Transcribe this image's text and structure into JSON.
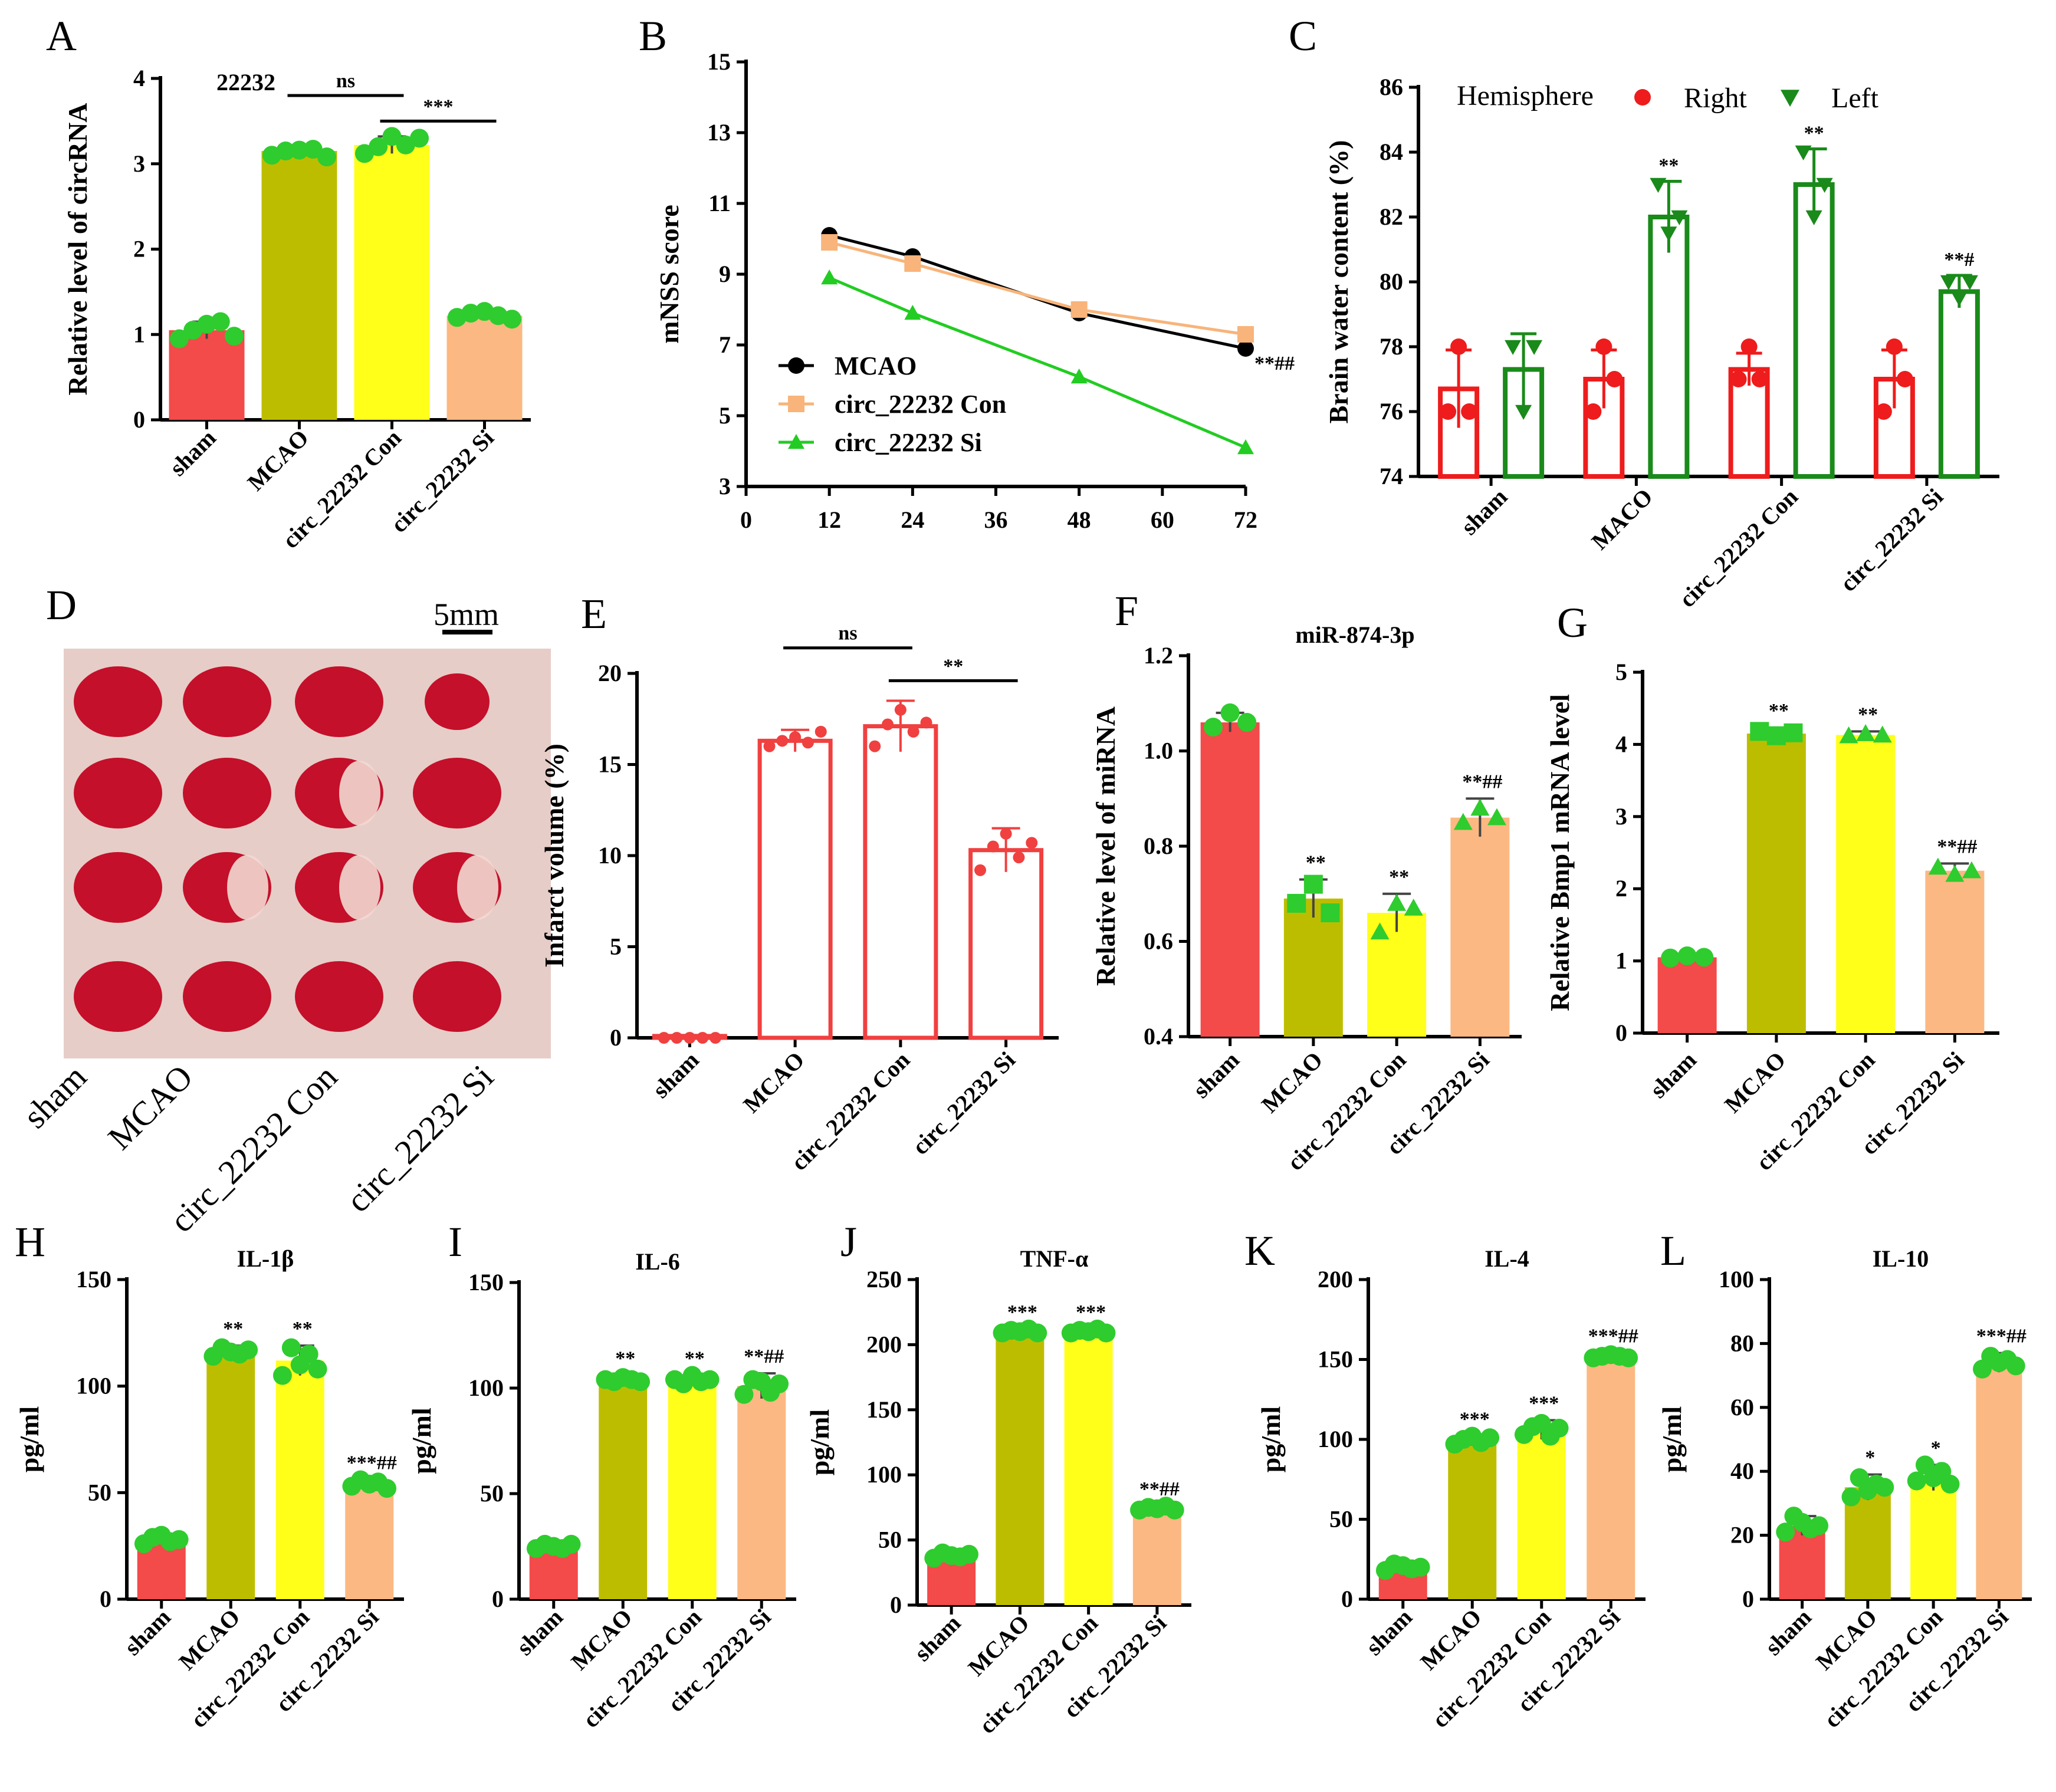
{
  "colors": {
    "sham": "#f34a4a",
    "MCAO": "#bdbd00",
    "con": "#ffff1a",
    "si": "#fcb882",
    "dot": "#2ecc2e",
    "right": "#ee1c1c",
    "left": "#1a8a1a",
    "infarct": "#f04040",
    "line_mcao": "#000000",
    "line_con": "#f8b47a",
    "line_si": "#22cc22"
  },
  "categories": [
    "sham",
    "MCAO",
    "circ_22232 Con",
    "circ_22232 Si"
  ],
  "panelD": {
    "letter": "D",
    "scale_label": "5mm",
    "categories": [
      "sham",
      "MCAO",
      "circ_22232 Con",
      "circ_22232 Si"
    ],
    "image_alt": "TTC-stained brain slices"
  },
  "chart_data": [
    {
      "id": "A",
      "type": "bar",
      "letter": "A",
      "title": "22232",
      "ylabel": "Relative level of circRNA",
      "categories": [
        "sham",
        "MCAO",
        "circ_22232 Con",
        "circ_22232 Si"
      ],
      "values": [
        1.05,
        3.15,
        3.22,
        1.22
      ],
      "errors": [
        0.1,
        0.04,
        0.1,
        0.04
      ],
      "points": [
        [
          0.95,
          1.05,
          1.12,
          1.15,
          0.98
        ],
        [
          3.1,
          3.15,
          3.16,
          3.17,
          3.08
        ],
        [
          3.12,
          3.2,
          3.32,
          3.22,
          3.3
        ],
        [
          1.2,
          1.25,
          1.27,
          1.22,
          1.18
        ]
      ],
      "ylim": [
        0,
        4
      ],
      "yticks": [
        0,
        1,
        2,
        3,
        4
      ],
      "brackets": [
        {
          "from": 1,
          "to": 2,
          "label": "ns",
          "y": 3.8
        },
        {
          "from": 2,
          "to": 3,
          "label": "***",
          "y": 3.5
        }
      ],
      "sig": [
        "",
        "",
        "",
        ""
      ]
    },
    {
      "id": "B",
      "type": "line",
      "letter": "B",
      "ylabel": "mNSS score",
      "x": [
        12,
        24,
        48,
        72
      ],
      "xticks": [
        0,
        12,
        24,
        36,
        48,
        60,
        72
      ],
      "yticks": [
        3,
        5,
        7,
        9,
        11,
        13,
        15
      ],
      "xlim": [
        0,
        72
      ],
      "ylim": [
        3,
        15
      ],
      "series": [
        {
          "name": "MCAO",
          "values": [
            10.1,
            9.5,
            7.9,
            6.9
          ],
          "marker": "circle"
        },
        {
          "name": "circ_22232 Con",
          "values": [
            9.9,
            9.3,
            8.0,
            7.3
          ],
          "marker": "square"
        },
        {
          "name": "circ_22232 Si",
          "values": [
            8.9,
            7.9,
            6.1,
            4.1
          ],
          "marker": "triangle"
        }
      ],
      "annotation": "**##"
    },
    {
      "id": "C",
      "type": "bar",
      "letter": "C",
      "ylabel": "Brain water content (%)",
      "legend_title": "Hemisphere",
      "legend": [
        "Right",
        "Left"
      ],
      "categories": [
        "sham",
        "MACO",
        "circ_22232 Con",
        "circ_22232 Si"
      ],
      "series": [
        {
          "name": "Right",
          "values": [
            76.7,
            77.0,
            77.3,
            77.0
          ],
          "errors": [
            1.2,
            0.9,
            0.5,
            0.9
          ],
          "points": [
            [
              76,
              78,
              76
            ],
            [
              76,
              78,
              77
            ],
            [
              77,
              78,
              77
            ],
            [
              76,
              78,
              77
            ]
          ]
        },
        {
          "name": "Left",
          "values": [
            77.3,
            82.0,
            83.0,
            79.7
          ],
          "errors": [
            1.1,
            1.1,
            1.1,
            0.5
          ],
          "points": [
            [
              78,
              76,
              78
            ],
            [
              83,
              81.5,
              82
            ],
            [
              84,
              82,
              83
            ],
            [
              80,
              79.5,
              80
            ]
          ]
        }
      ],
      "ylim": [
        74,
        86
      ],
      "yticks": [
        74,
        76,
        78,
        80,
        82,
        84,
        86
      ],
      "sig": [
        "",
        "**",
        "**",
        "**#"
      ]
    },
    {
      "id": "E",
      "type": "bar",
      "letter": "E",
      "ylabel": "Infarct volume (%)",
      "categories": [
        "sham",
        "MCAO",
        "circ_22232 Con",
        "circ_22232 Si"
      ],
      "values": [
        0.1,
        16.3,
        17.1,
        10.3
      ],
      "errors": [
        0.05,
        0.6,
        1.4,
        1.2
      ],
      "points": [
        [
          0,
          0,
          0,
          0,
          0
        ],
        [
          16.0,
          16.3,
          16.5,
          16.2,
          16.8
        ],
        [
          16,
          17.2,
          18,
          16.8,
          17.3
        ],
        [
          9.2,
          10.5,
          11.2,
          9.9,
          10.7
        ]
      ],
      "ylim": [
        0,
        20
      ],
      "yticks": [
        0,
        5,
        10,
        15,
        20
      ],
      "brackets": [
        {
          "from": 1,
          "to": 2,
          "label": "ns",
          "y": 21.4
        },
        {
          "from": 2,
          "to": 3,
          "label": "**",
          "y": 19.6
        }
      ],
      "sig": [
        "",
        "",
        "",
        ""
      ],
      "outline": true
    },
    {
      "id": "F",
      "type": "bar",
      "letter": "F",
      "title": "miR-874-3p",
      "ylabel": "Relative level of miRNA",
      "categories": [
        "sham",
        "MCAO",
        "circ_22232 Con",
        "circ_22232 Si"
      ],
      "values": [
        1.06,
        0.69,
        0.66,
        0.86
      ],
      "errors": [
        0.02,
        0.04,
        0.04,
        0.04
      ],
      "points": [
        [
          1.05,
          1.08,
          1.06
        ],
        [
          0.68,
          0.72,
          0.66
        ],
        [
          0.62,
          0.68,
          0.67
        ],
        [
          0.85,
          0.88,
          0.86
        ]
      ],
      "ylim": [
        0.4,
        1.2
      ],
      "yticks": [
        0.4,
        0.6,
        0.8,
        1.0,
        1.2
      ],
      "sig": [
        "",
        "**",
        "**",
        "**##"
      ]
    },
    {
      "id": "G",
      "type": "bar",
      "letter": "G",
      "ylabel": "Relative Bmp1 mRNA level",
      "categories": [
        "sham",
        "MCAO",
        "circ_22232 Con",
        "circ_22232 Si"
      ],
      "values": [
        1.05,
        4.15,
        4.13,
        2.25
      ],
      "errors": [
        0.03,
        0.08,
        0.05,
        0.1
      ],
      "points": [
        [
          1.04,
          1.07,
          1.05
        ],
        [
          4.18,
          4.12,
          4.16
        ],
        [
          4.12,
          4.15,
          4.13
        ],
        [
          2.3,
          2.2,
          2.25
        ]
      ],
      "ylim": [
        0,
        5
      ],
      "yticks": [
        0,
        1,
        2,
        3,
        4,
        5
      ],
      "sig": [
        "",
        "**",
        "**",
        "**##"
      ]
    },
    {
      "id": "H",
      "type": "bar",
      "letter": "H",
      "title": "IL-1β",
      "ylabel": "pg/ml",
      "categories": [
        "sham",
        "MCAO",
        "circ_22232 Con",
        "circ_22232 Si"
      ],
      "values": [
        28,
        116,
        112,
        54
      ],
      "errors": [
        2,
        3,
        7,
        2
      ],
      "points": [
        [
          26,
          29,
          30,
          27,
          28
        ],
        [
          114,
          118,
          116,
          115,
          117
        ],
        [
          105,
          118,
          110,
          115,
          108
        ],
        [
          53,
          56,
          54,
          55,
          52
        ]
      ],
      "ylim": [
        0,
        150
      ],
      "yticks": [
        0,
        50,
        100,
        150
      ],
      "sig": [
        "",
        "**",
        "**",
        "***##"
      ]
    },
    {
      "id": "I",
      "type": "bar",
      "letter": "I",
      "title": "IL-6",
      "ylabel": "pg/ml",
      "categories": [
        "sham",
        "MCAO",
        "circ_22232 Con",
        "circ_22232 Si"
      ],
      "values": [
        25,
        104,
        104,
        101
      ],
      "errors": [
        2,
        2,
        2,
        6
      ],
      "points": [
        [
          24,
          26,
          25,
          24,
          26
        ],
        [
          104,
          103,
          105,
          104,
          103
        ],
        [
          104,
          102,
          106,
          103,
          104
        ],
        [
          97,
          104,
          103,
          98,
          102
        ]
      ],
      "ylim": [
        0,
        150
      ],
      "yticks": [
        0,
        50,
        100,
        150
      ],
      "sig": [
        "",
        "**",
        "**",
        "**##"
      ]
    },
    {
      "id": "J",
      "type": "bar",
      "letter": "J",
      "title": "TNF-α",
      "ylabel": "pg/ml",
      "categories": [
        "sham",
        "MCAO",
        "circ_22232 Con",
        "circ_22232 Si"
      ],
      "values": [
        38,
        210,
        210,
        74
      ],
      "errors": [
        3,
        2,
        2,
        2
      ],
      "points": [
        [
          36,
          40,
          38,
          37,
          39
        ],
        [
          209,
          211,
          210,
          212,
          209
        ],
        [
          209,
          211,
          210,
          212,
          209
        ],
        [
          73,
          75,
          74,
          76,
          73
        ]
      ],
      "ylim": [
        0,
        250
      ],
      "yticks": [
        0,
        50,
        100,
        150,
        200,
        250
      ],
      "sig": [
        "",
        "***",
        "***",
        "**##"
      ]
    },
    {
      "id": "K",
      "type": "bar",
      "letter": "K",
      "title": "IL-4",
      "ylabel": "pg/ml",
      "categories": [
        "sham",
        "MCAO",
        "circ_22232 Con",
        "circ_22232 Si"
      ],
      "values": [
        20,
        99,
        106,
        152
      ],
      "errors": [
        3,
        3,
        6,
        2
      ],
      "points": [
        [
          18,
          22,
          21,
          19,
          20
        ],
        [
          97,
          100,
          102,
          98,
          101
        ],
        [
          103,
          108,
          110,
          102,
          107
        ],
        [
          151,
          152,
          153,
          152,
          151
        ]
      ],
      "ylim": [
        0,
        200
      ],
      "yticks": [
        0,
        50,
        100,
        150,
        200
      ],
      "sig": [
        "",
        "***",
        "***",
        "***##"
      ]
    },
    {
      "id": "L",
      "type": "bar",
      "letter": "L",
      "title": "IL-10",
      "ylabel": "pg/ml",
      "categories": [
        "sham",
        "MCAO",
        "circ_22232 Con",
        "circ_22232 Si"
      ],
      "values": [
        23,
        35,
        38,
        74
      ],
      "errors": [
        3,
        4,
        4,
        3
      ],
      "points": [
        [
          21,
          26,
          24,
          22,
          23
        ],
        [
          32,
          38,
          34,
          36,
          35
        ],
        [
          37,
          42,
          38,
          40,
          36
        ],
        [
          72,
          76,
          74,
          75,
          73
        ]
      ],
      "ylim": [
        0,
        100
      ],
      "yticks": [
        0,
        20,
        40,
        60,
        80,
        100
      ],
      "sig": [
        "",
        "*",
        "*",
        "***##"
      ]
    }
  ]
}
